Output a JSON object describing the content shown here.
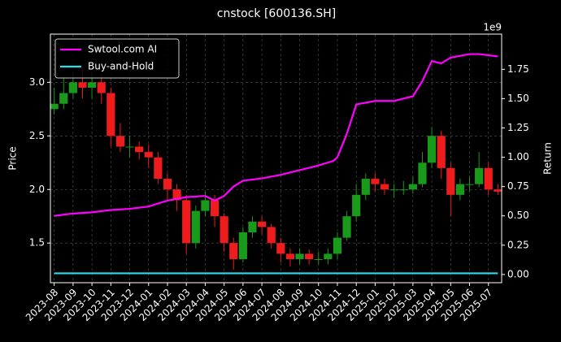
{
  "chart_data": {
    "type": "candlestick",
    "title": "cnstock [600136.SH]",
    "ylabel": "Price",
    "y2label": "Return",
    "y2_offset_label": "1e9",
    "x": [
      0,
      0.5,
      1,
      1.5,
      2,
      2.5,
      3,
      3.5,
      4,
      4.5,
      5,
      5.5,
      6,
      6.5,
      7,
      7.5,
      8,
      8.5,
      9,
      9.5,
      10,
      10.5,
      11,
      11.5,
      12,
      12.5,
      13,
      13.5,
      14,
      14.5,
      15,
      15.5,
      16,
      16.5,
      17,
      17.5,
      18,
      18.5,
      19,
      19.5,
      20,
      20.5,
      21,
      21.5,
      22,
      22.5,
      23,
      23.5
    ],
    "open": [
      2.75,
      2.8,
      2.9,
      3.0,
      2.95,
      3.0,
      2.9,
      2.5,
      2.4,
      2.4,
      2.35,
      2.3,
      2.1,
      2.0,
      1.9,
      1.5,
      1.8,
      1.9,
      1.75,
      1.5,
      1.35,
      1.6,
      1.7,
      1.65,
      1.5,
      1.4,
      1.35,
      1.4,
      1.35,
      1.35,
      1.4,
      1.55,
      1.75,
      1.95,
      2.1,
      2.05,
      2.0,
      2.0,
      2.0,
      2.05,
      2.25,
      2.5,
      2.2,
      1.95,
      2.05,
      2.05,
      2.2,
      2.0
    ],
    "high": [
      2.95,
      3.05,
      3.1,
      3.15,
      3.1,
      3.08,
      2.95,
      2.62,
      2.5,
      2.45,
      2.42,
      2.35,
      2.15,
      2.05,
      1.95,
      1.85,
      1.98,
      1.95,
      1.78,
      1.55,
      1.65,
      1.75,
      1.75,
      1.68,
      1.55,
      1.45,
      1.45,
      1.44,
      1.42,
      1.45,
      1.6,
      1.8,
      2.05,
      2.15,
      2.15,
      2.1,
      2.05,
      2.08,
      2.12,
      2.35,
      2.58,
      2.55,
      2.25,
      2.1,
      2.12,
      2.35,
      2.25,
      2.05
    ],
    "low": [
      2.7,
      2.75,
      2.85,
      2.85,
      2.85,
      2.8,
      2.4,
      2.35,
      2.3,
      2.28,
      2.2,
      2.05,
      1.9,
      1.8,
      1.4,
      1.45,
      1.75,
      1.65,
      1.42,
      1.25,
      1.32,
      1.55,
      1.58,
      1.45,
      1.32,
      1.28,
      1.3,
      1.3,
      1.3,
      1.3,
      1.35,
      1.52,
      1.7,
      1.9,
      1.98,
      1.95,
      1.92,
      1.95,
      1.96,
      2.02,
      2.2,
      2.1,
      1.75,
      1.9,
      1.98,
      2.02,
      1.95,
      1.95
    ],
    "close": [
      2.8,
      2.9,
      3.0,
      2.95,
      3.0,
      2.9,
      2.5,
      2.4,
      2.4,
      2.35,
      2.3,
      2.1,
      2.0,
      1.9,
      1.5,
      1.8,
      1.9,
      1.75,
      1.5,
      1.35,
      1.6,
      1.7,
      1.65,
      1.5,
      1.4,
      1.35,
      1.4,
      1.35,
      1.35,
      1.4,
      1.55,
      1.75,
      1.95,
      2.1,
      2.05,
      2.0,
      2.0,
      2.0,
      2.05,
      2.25,
      2.5,
      2.2,
      1.95,
      2.05,
      2.05,
      2.2,
      2.0,
      1.98
    ],
    "up_color": "#1a9a1a",
    "down_color": "#ee1c1c",
    "series": [
      {
        "name": "Swtool.com AI",
        "color": "#ff00ff",
        "axis": "y2",
        "x": [
          0,
          1,
          2,
          3,
          4,
          5,
          6,
          7,
          8,
          8.5,
          9,
          9.5,
          10,
          11,
          12,
          13,
          14,
          14.8,
          15,
          15.5,
          16,
          17,
          18,
          19,
          19.5,
          20,
          20.5,
          21,
          22,
          22.5,
          23,
          23.5
        ],
        "values": [
          0.5,
          0.52,
          0.53,
          0.55,
          0.56,
          0.58,
          0.63,
          0.66,
          0.67,
          0.63,
          0.67,
          0.75,
          0.8,
          0.82,
          0.85,
          0.89,
          0.93,
          0.97,
          1.0,
          1.2,
          1.45,
          1.48,
          1.48,
          1.52,
          1.65,
          1.82,
          1.8,
          1.85,
          1.88,
          1.88,
          1.87,
          1.86
        ]
      },
      {
        "name": "Buy-and-Hold",
        "color": "#22e0ee",
        "axis": "y2",
        "x": [
          0,
          23.5
        ],
        "values": [
          0.01,
          0.01
        ]
      }
    ],
    "xlim": [
      -0.2,
      23.7
    ],
    "xticks": [
      {
        "value": 0,
        "label": "2023-08"
      },
      {
        "value": 1,
        "label": "2023-09"
      },
      {
        "value": 2,
        "label": "2023-10"
      },
      {
        "value": 3,
        "label": "2023-11"
      },
      {
        "value": 4,
        "label": "2023-12"
      },
      {
        "value": 5,
        "label": "2024-01"
      },
      {
        "value": 6,
        "label": "2024-02"
      },
      {
        "value": 7,
        "label": "2024-03"
      },
      {
        "value": 8,
        "label": "2024-04"
      },
      {
        "value": 9,
        "label": "2024-05"
      },
      {
        "value": 10,
        "label": "2024-06"
      },
      {
        "value": 11,
        "label": "2024-07"
      },
      {
        "value": 12,
        "label": "2024-08"
      },
      {
        "value": 13,
        "label": "2024-09"
      },
      {
        "value": 14,
        "label": "2024-10"
      },
      {
        "value": 15,
        "label": "2024-11"
      },
      {
        "value": 16,
        "label": "2024-12"
      },
      {
        "value": 17,
        "label": "2025-01"
      },
      {
        "value": 18,
        "label": "2025-02"
      },
      {
        "value": 19,
        "label": "2025-03"
      },
      {
        "value": 20,
        "label": "2025-04"
      },
      {
        "value": 21,
        "label": "2025-05"
      },
      {
        "value": 22,
        "label": "2025-06"
      },
      {
        "value": 23,
        "label": "2025-07"
      }
    ],
    "ylim": [
      1.13,
      3.45
    ],
    "yticks": [
      1.5,
      {
        "value": 2,
        "label": "2.0"
      },
      2.5,
      {
        "value": 3,
        "label": "3.0"
      }
    ],
    "y2lim": [
      -0.07,
      2.05
    ],
    "y2ticks": [
      {
        "value": 0,
        "label": "0.00"
      },
      {
        "value": 0.25,
        "label": "0.25"
      },
      {
        "value": 0.5,
        "label": "0.50"
      },
      {
        "value": 0.75,
        "label": "0.75"
      },
      {
        "value": 1,
        "label": "1.00"
      },
      {
        "value": 1.25,
        "label": "1.25"
      },
      {
        "value": 1.5,
        "label": "1.50"
      },
      {
        "value": 1.75,
        "label": "1.75"
      }
    ],
    "grid": true,
    "legend": "upper left"
  }
}
